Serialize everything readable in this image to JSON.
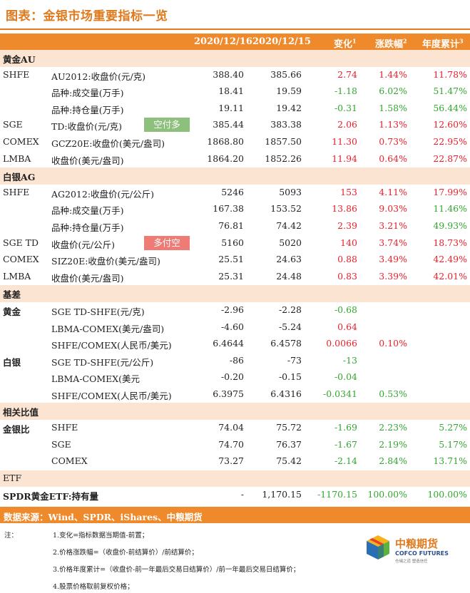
{
  "title": "图表：金银市场重要指标一览",
  "header": {
    "date1": "2020/12/16",
    "date2": "2020/12/15",
    "change": "变化",
    "change_sup": "1",
    "pct": "涨跌幅",
    "pct_sup": "2",
    "ytd": "年度累计",
    "ytd_sup": "3"
  },
  "rows": [
    {
      "type": "section",
      "group": "黄金AU"
    },
    {
      "group": "SHFE",
      "item": "AU2012:收盘价(元/克)",
      "d1": "388.40",
      "d2": "385.66",
      "chg": "2.74",
      "chg_c": "red",
      "pct": "1.44%",
      "pct_c": "red",
      "ytd": "11.78%",
      "ytd_c": "red"
    },
    {
      "group": "",
      "item": "品种:成交量(万手)",
      "d1": "18.41",
      "d2": "19.59",
      "chg": "-1.18",
      "chg_c": "green",
      "pct": "6.02%",
      "pct_c": "green",
      "ytd": "51.47%",
      "ytd_c": "green"
    },
    {
      "group": "",
      "item": "品种:持仓量(万手)",
      "d1": "19.11",
      "d2": "19.42",
      "chg": "-0.31",
      "chg_c": "green",
      "pct": "1.58%",
      "pct_c": "green",
      "ytd": "56.44%",
      "ytd_c": "green"
    },
    {
      "group": "SGE",
      "item": "TD:收盘价(元/克)",
      "tag": "空付多",
      "tag_c": "green-bg",
      "d1": "385.44",
      "d2": "383.38",
      "chg": "2.06",
      "chg_c": "red",
      "pct": "1.13%",
      "pct_c": "red",
      "ytd": "12.60%",
      "ytd_c": "red"
    },
    {
      "group": "COMEX",
      "item": "GCZ20E:收盘价(美元/盎司)",
      "d1": "1868.80",
      "d2": "1857.50",
      "chg": "11.30",
      "chg_c": "red",
      "pct": "0.73%",
      "pct_c": "red",
      "ytd": "22.95%",
      "ytd_c": "red"
    },
    {
      "group": "LMBA",
      "item": "收盘价(美元/盎司)",
      "d1": "1864.20",
      "d2": "1852.26",
      "chg": "11.94",
      "chg_c": "red",
      "pct": "0.64%",
      "pct_c": "red",
      "ytd": "22.87%",
      "ytd_c": "red"
    },
    {
      "type": "section",
      "group": "白银AG"
    },
    {
      "group": "SHFE",
      "item": "AG2012:收盘价(元/公斤)",
      "d1": "5246",
      "d2": "5093",
      "chg": "153",
      "chg_c": "red",
      "pct": "4.11%",
      "pct_c": "red",
      "ytd": "17.99%",
      "ytd_c": "red"
    },
    {
      "group": "",
      "item": "品种:成交量(万手)",
      "d1": "167.38",
      "d2": "153.52",
      "chg": "13.86",
      "chg_c": "red",
      "pct": "9.03%",
      "pct_c": "red",
      "ytd": "11.46%",
      "ytd_c": "green"
    },
    {
      "group": "",
      "item": "品种:持仓量(万手)",
      "d1": "76.81",
      "d2": "74.42",
      "chg": "2.39",
      "chg_c": "red",
      "pct": "3.21%",
      "pct_c": "red",
      "ytd": "49.93%",
      "ytd_c": "green"
    },
    {
      "group": "SGE TD",
      "item": "收盘价(元/公斤)",
      "tag": "多付空",
      "tag_c": "red-bg",
      "d1": "5160",
      "d2": "5020",
      "chg": "140",
      "chg_c": "red",
      "pct": "3.74%",
      "pct_c": "red",
      "ytd": "18.73%",
      "ytd_c": "red"
    },
    {
      "group": "COMEX",
      "item": "SIZ20E:收盘价(美元/盎司)",
      "d1": "25.51",
      "d2": "24.63",
      "chg": "0.88",
      "chg_c": "red",
      "pct": "3.49%",
      "pct_c": "red",
      "ytd": "42.49%",
      "ytd_c": "red"
    },
    {
      "group": "LMBA",
      "item": "收盘价(美元/盎司)",
      "d1": "25.31",
      "d2": "24.48",
      "chg": "0.83",
      "chg_c": "red",
      "pct": "3.39%",
      "pct_c": "red",
      "ytd": "42.01%",
      "ytd_c": "red"
    },
    {
      "type": "section",
      "group": "基差"
    },
    {
      "group": "黄金",
      "group_bold": true,
      "item": "SGE TD-SHFE(元/克)",
      "d1": "-2.96",
      "d2": "-2.28",
      "chg": "-0.68",
      "chg_c": "green",
      "pct": "",
      "ytd": ""
    },
    {
      "group": "",
      "item": "LBMA-COMEX(美元/盎司)",
      "d1": "-4.60",
      "d2": "-5.24",
      "chg": "0.64",
      "chg_c": "red",
      "pct": "",
      "ytd": ""
    },
    {
      "group": "",
      "item": "SHFE/COMEX(人民币/美元)",
      "d1": "6.4644",
      "d2": "6.4578",
      "chg": "0.0066",
      "chg_c": "red",
      "pct": "0.10%",
      "pct_c": "red",
      "ytd": ""
    },
    {
      "group": "白银",
      "group_bold": true,
      "item": "SGE TD-SHFE(元/公斤)",
      "d1": "-86",
      "d2": "-73",
      "chg": "-13",
      "chg_c": "green",
      "pct": "",
      "ytd": ""
    },
    {
      "group": "",
      "item": "LBMA-COMEX(美元",
      "d1": "-0.20",
      "d2": "-0.15",
      "chg": "-0.04",
      "chg_c": "green",
      "pct": "",
      "ytd": ""
    },
    {
      "group": "",
      "item": "SHFE/COMEX(人民币/美元)",
      "d1": "6.3975",
      "d2": "6.4316",
      "chg": "-0.0341",
      "chg_c": "green",
      "pct": "0.53%",
      "pct_c": "green",
      "ytd": ""
    },
    {
      "type": "section",
      "group": "相关比值"
    },
    {
      "group": "金银比",
      "group_bold": true,
      "item": "SHFE",
      "d1": "74.04",
      "d2": "75.72",
      "chg": "-1.69",
      "chg_c": "green",
      "pct": "2.23%",
      "pct_c": "green",
      "ytd": "5.27%",
      "ytd_c": "green"
    },
    {
      "group": "",
      "item": "SGE",
      "d1": "74.70",
      "d2": "76.37",
      "chg": "-1.67",
      "chg_c": "green",
      "pct": "2.19%",
      "pct_c": "green",
      "ytd": "5.17%",
      "ytd_c": "green"
    },
    {
      "group": "",
      "item": "COMEX",
      "d1": "73.27",
      "d2": "75.42",
      "chg": "-2.14",
      "chg_c": "green",
      "pct": "2.84%",
      "pct_c": "green",
      "ytd": "13.71%",
      "ytd_c": "green"
    },
    {
      "type": "etf",
      "group": "ETF"
    },
    {
      "group": "SPDR黄金ETF:持有量",
      "group_bold": true,
      "item": "",
      "d1": "-",
      "d2": "1,170.15",
      "chg": "-1170.15",
      "chg_c": "green",
      "pct": "100.00%",
      "pct_c": "green",
      "ytd": "100.00%",
      "ytd_c": "green"
    }
  ],
  "source": "数据来源：Wind、SPDR、iShares、中粮期货",
  "notes": {
    "label": "注：",
    "items": [
      "1.变化=指标数据当期值-前置；",
      "2.价格涨跌幅=（收盘价-前结算价）/前结算价；",
      "3.价格年度累计=（收盘价-前一年最后交易日结算价）/前一年最后交易日结算价；",
      "4.股票价格取前复权价格；"
    ]
  },
  "logo": {
    "cn": "中粮期货",
    "en": "COFCO FUTURES",
    "sub": "仓储之道 塑造信任"
  },
  "colors": {
    "accent": "#ef8a2c",
    "section_bg": "#fbe4d2",
    "up": "#e8202a",
    "down": "#33a630"
  }
}
